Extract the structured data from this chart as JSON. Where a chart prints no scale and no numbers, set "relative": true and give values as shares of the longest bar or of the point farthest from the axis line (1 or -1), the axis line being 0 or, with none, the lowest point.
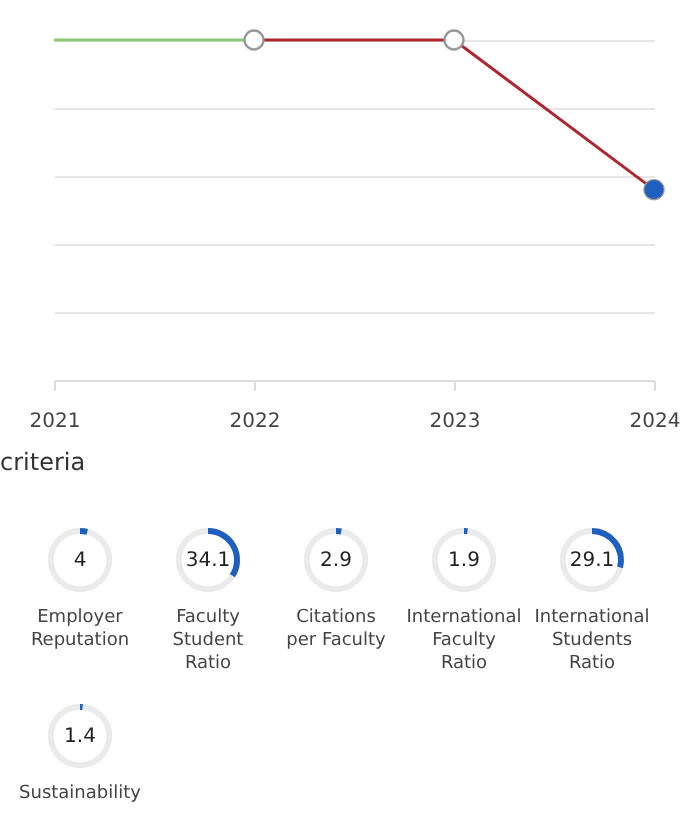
{
  "chart_data": [
    {
      "type": "line",
      "relative": true,
      "categories": [
        "2021",
        "2022",
        "2023",
        "2024"
      ],
      "grid": "y",
      "tick_labels": "x",
      "series": [
        {
          "color": "#8cc97a",
          "values": [
            1,
            1,
            null,
            null
          ]
        },
        {
          "color": "#b0262e",
          "values": [
            null,
            1,
            1,
            0.56
          ],
          "marker": "circle"
        },
        {
          "type": "scatter",
          "color": "#1f5fbf",
          "values": [
            null,
            null,
            null,
            0.56
          ],
          "marker": "circle"
        }
      ]
    },
    {
      "type": "other",
      "title": "criteria",
      "categories": [
        "Employer Reputation",
        "Faculty Student Ratio",
        "Citations per Faculty",
        "International Faculty Ratio",
        "International Students Ratio",
        "Sustainability"
      ],
      "values": [
        4,
        34.1,
        2.9,
        1.9,
        29.1,
        1.4
      ],
      "data_labels": true,
      "color": "#1f5fbf"
    }
  ]
}
